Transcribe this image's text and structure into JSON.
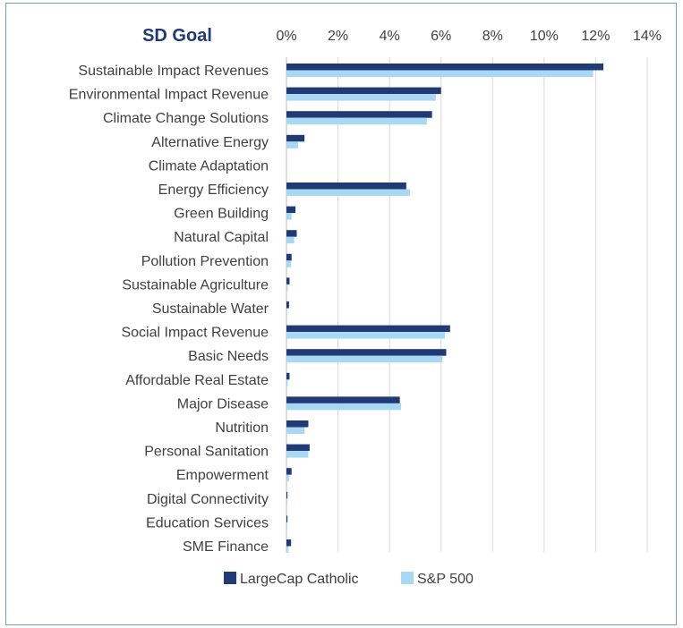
{
  "chart_data": {
    "type": "bar",
    "orientation": "horizontal",
    "title": "SD Goal",
    "xlabel": "",
    "ylabel": "",
    "xlim": [
      0,
      14
    ],
    "x_ticks": [
      "0%",
      "2%",
      "4%",
      "6%",
      "8%",
      "10%",
      "12%",
      "14%"
    ],
    "x_axis_position": "top",
    "grid": true,
    "legend_position": "bottom",
    "categories": [
      "Sustainable Impact Revenues",
      "Environmental Impact Revenue",
      "Climate Change Solutions",
      "Alternative Energy",
      "Climate Adaptation",
      "Energy Efficiency",
      "Green Building",
      "Natural Capital",
      "Pollution Prevention",
      "Sustainable Agriculture",
      "Sustainable Water",
      "Social Impact Revenue",
      "Basic Needs",
      "Affordable Real Estate",
      "Major Disease",
      "Nutrition",
      "Personal Sanitation",
      "Empowerment",
      "Digital Connectivity",
      "Education Services",
      "SME Finance"
    ],
    "series": [
      {
        "name": "LargeCap Catholic",
        "color": "#1f3a74",
        "values": [
          12.3,
          6.0,
          5.65,
          0.7,
          0.0,
          4.65,
          0.35,
          0.4,
          0.2,
          0.12,
          0.1,
          6.35,
          6.2,
          0.12,
          4.4,
          0.85,
          0.9,
          0.2,
          0.04,
          0.04,
          0.18
        ]
      },
      {
        "name": "S&P 500",
        "color": "#a9d8f5",
        "values": [
          11.9,
          5.8,
          5.45,
          0.45,
          0.0,
          4.8,
          0.2,
          0.3,
          0.18,
          0.05,
          0.03,
          6.15,
          6.05,
          0.05,
          4.45,
          0.7,
          0.85,
          0.1,
          0.03,
          0.03,
          0.08
        ]
      }
    ]
  },
  "colors": {
    "title": "#1f3a74",
    "label_text": "#404040",
    "gridline": "#d9d9d9",
    "frame_border": "#7f9bc4"
  }
}
